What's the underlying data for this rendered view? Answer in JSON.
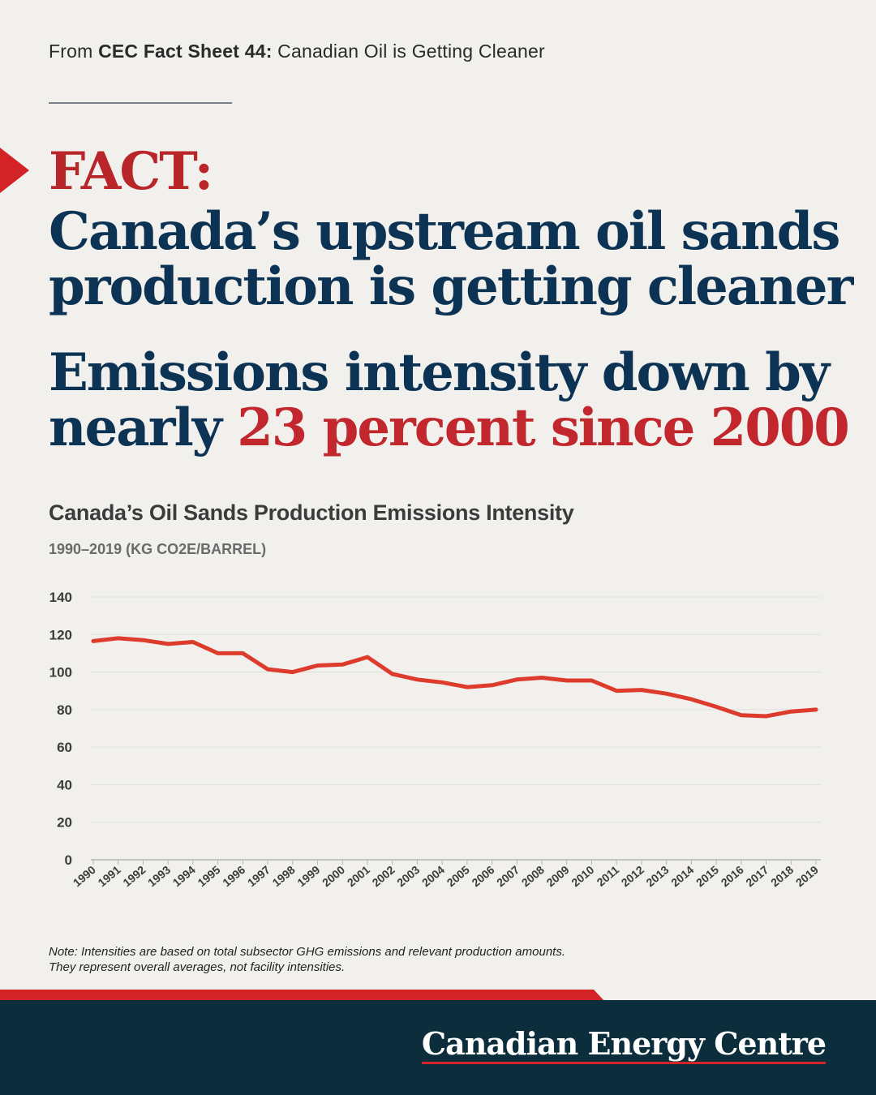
{
  "header": {
    "source_prefix": "From ",
    "source_bold": "CEC Fact Sheet 44:",
    "source_rest": " Canadian Oil is Getting Cleaner"
  },
  "headline": {
    "fact": "FACT:",
    "line1": "Canada’s upstream oil sands",
    "line2": "production is getting cleaner",
    "sub_line1": "Emissions intensity down by",
    "sub_line2_prefix": "nearly ",
    "sub_line2_accent": "23 percent since 2000"
  },
  "chart_data": {
    "type": "line",
    "title": "Canada’s Oil Sands Production Emissions Intensity",
    "subtitle": "1990–2019 (KG CO2E/BARREL)",
    "x": [
      "1990",
      "1991",
      "1992",
      "1993",
      "1994",
      "1995",
      "1996",
      "1997",
      "1998",
      "1999",
      "2000",
      "2001",
      "2002",
      "2003",
      "2004",
      "2005",
      "2006",
      "2007",
      "2008",
      "2009",
      "2010",
      "2011",
      "2012",
      "2013",
      "2014",
      "2015",
      "2016",
      "2017",
      "2018",
      "2019"
    ],
    "series": [
      {
        "values": [
          116.5,
          118,
          117,
          115,
          116,
          110,
          110,
          101.5,
          100,
          103.5,
          104,
          108,
          99,
          96,
          94.5,
          92,
          93,
          96,
          97,
          95.5,
          95.5,
          90,
          90.5,
          88.5,
          85.5,
          81.5,
          77,
          76.5,
          79,
          80
        ],
        "color": "#dd3b2b"
      }
    ],
    "ylim": [
      0,
      140
    ],
    "yticks": [
      0,
      20,
      40,
      60,
      80,
      100,
      120,
      140
    ],
    "grid": true
  },
  "note": {
    "line1": "Note: Intensities are based on total subsector GHG emissions and relevant production amounts.",
    "line2": "They represent overall averages, not facility intensities."
  },
  "footer": {
    "brand": "Canadian Energy Centre"
  },
  "colors": {
    "navy": "#0c3354",
    "red": "#c2272d",
    "footer_bg": "#0c2e3c"
  }
}
